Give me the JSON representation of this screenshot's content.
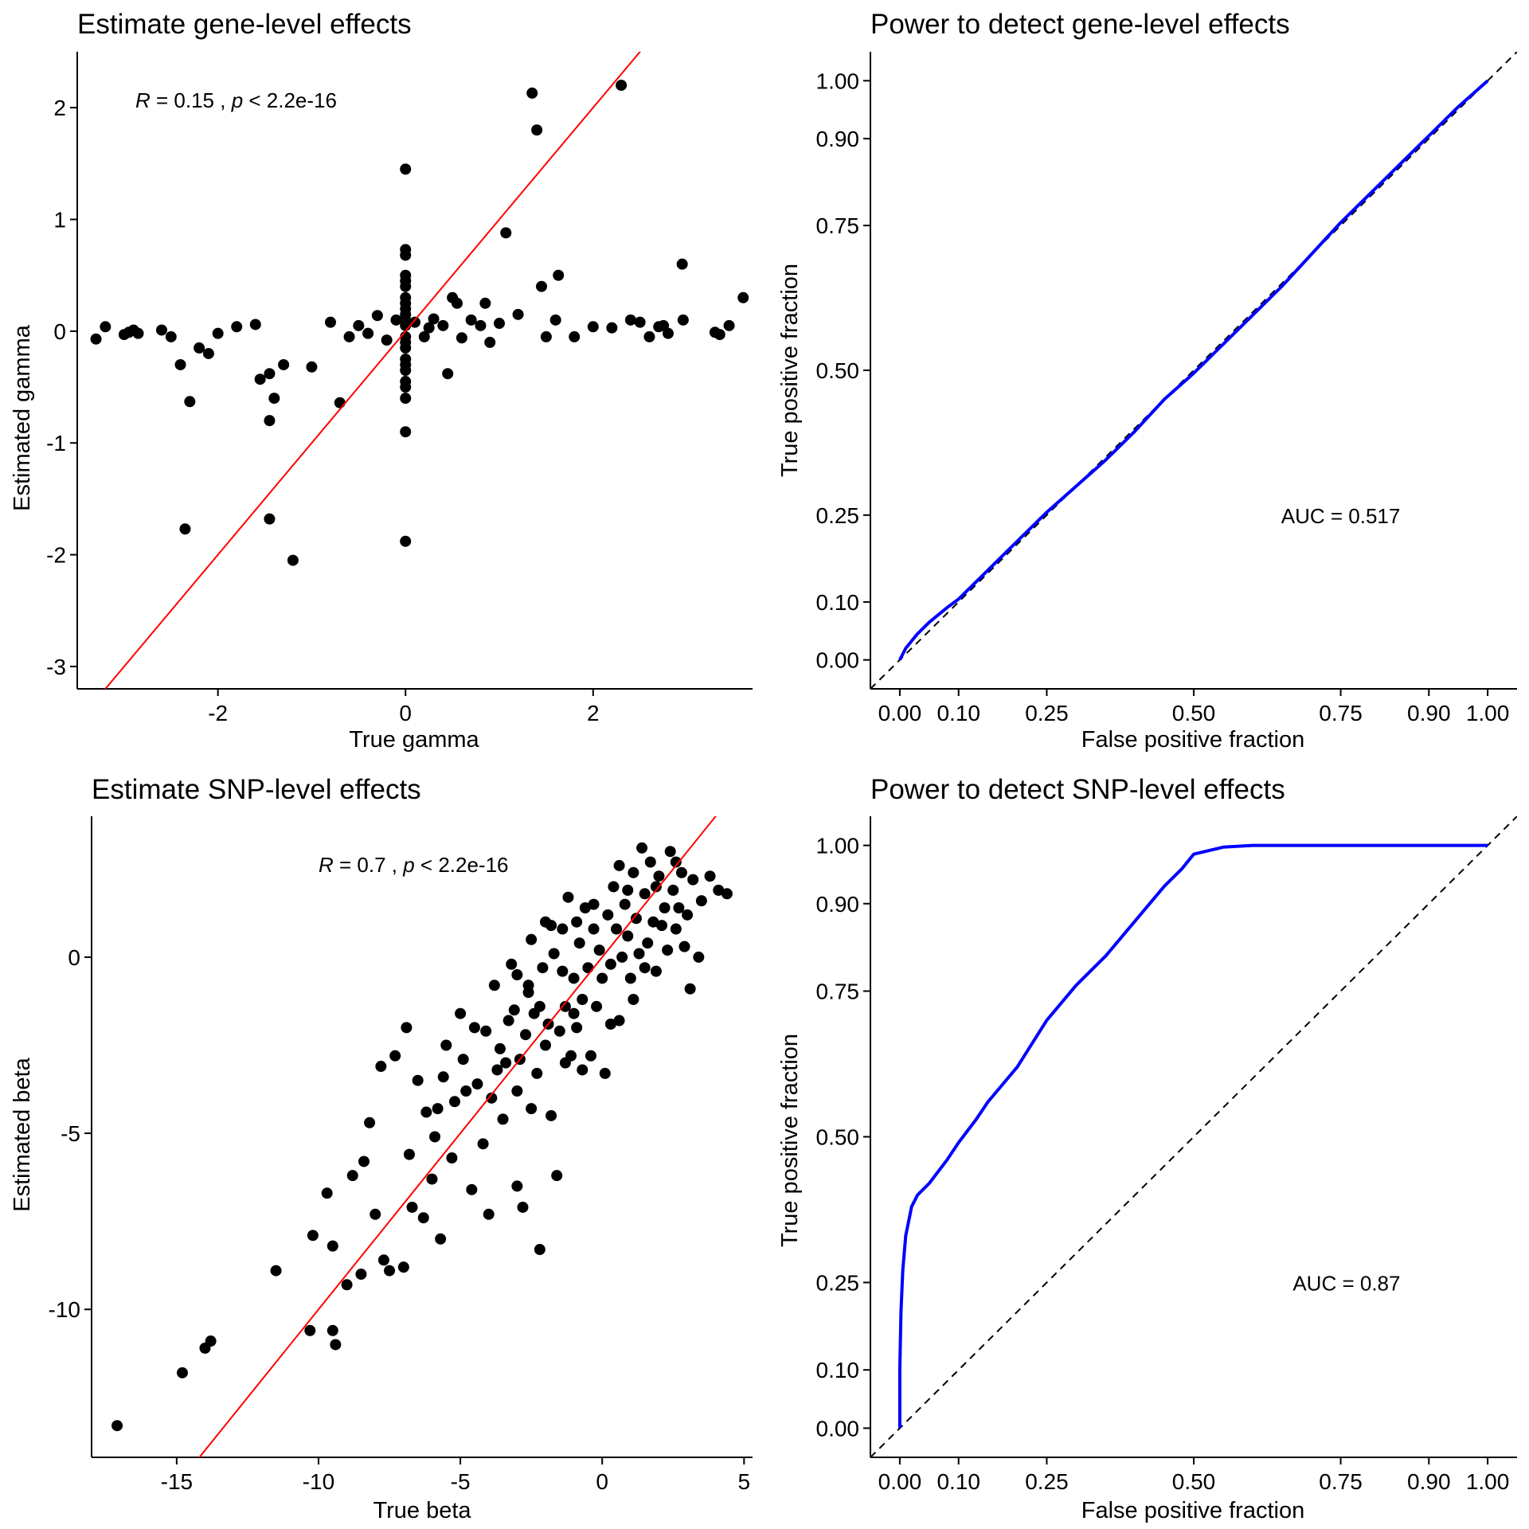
{
  "chart_data": [
    {
      "id": "gene-scatter",
      "type": "scatter",
      "title": "Estimate gene-level effects",
      "xlabel": "True gamma",
      "ylabel": "Estimated gamma",
      "xlim": [
        -3.5,
        3.7
      ],
      "ylim": [
        -3.2,
        2.5
      ],
      "xticks": [
        -2,
        0,
        2
      ],
      "yticks": [
        -3,
        -2,
        -1,
        0,
        1,
        2
      ],
      "tick_labels_x": [
        "-2",
        "0",
        "2"
      ],
      "tick_labels_y": [
        "-3",
        "-2",
        "-1",
        "0",
        "1",
        "2"
      ],
      "annotation_r": "R",
      "annotation_rest": " = 0.15 , ",
      "annotation_p": "p",
      "annotation_end": " < 2.2e-16",
      "fit_line": {
        "slope": 1.0,
        "intercept": 0.0,
        "color": "#ff0000"
      },
      "point_color": "#000000",
      "points": [
        [
          -3.3,
          -0.07
        ],
        [
          -3.2,
          0.04
        ],
        [
          -3.0,
          -0.03
        ],
        [
          -2.95,
          -0.01
        ],
        [
          -2.9,
          0.01
        ],
        [
          -2.85,
          -0.02
        ],
        [
          -2.6,
          0.01
        ],
        [
          -2.5,
          -0.05
        ],
        [
          -2.4,
          -0.3
        ],
        [
          -2.3,
          -0.63
        ],
        [
          -2.35,
          -1.77
        ],
        [
          -2.2,
          -0.15
        ],
        [
          -2.1,
          -0.2
        ],
        [
          -2.0,
          -0.02
        ],
        [
          -1.8,
          0.04
        ],
        [
          -1.6,
          0.06
        ],
        [
          -1.55,
          -0.43
        ],
        [
          -1.45,
          -0.38
        ],
        [
          -1.4,
          -0.6
        ],
        [
          -1.45,
          -0.8
        ],
        [
          -1.45,
          -1.68
        ],
        [
          -1.3,
          -0.3
        ],
        [
          -1.2,
          -2.05
        ],
        [
          -1.0,
          -0.32
        ],
        [
          -0.8,
          0.08
        ],
        [
          -0.7,
          -0.64
        ],
        [
          -0.6,
          -0.05
        ],
        [
          -0.5,
          0.05
        ],
        [
          -0.4,
          -0.02
        ],
        [
          -0.3,
          0.14
        ],
        [
          -0.2,
          -0.08
        ],
        [
          -0.1,
          0.1
        ],
        [
          0,
          1.45
        ],
        [
          0,
          0.73
        ],
        [
          0,
          0.68
        ],
        [
          0,
          0.5
        ],
        [
          0,
          0.45
        ],
        [
          0,
          0.4
        ],
        [
          0,
          0.3
        ],
        [
          0,
          0.25
        ],
        [
          0,
          0.2
        ],
        [
          0,
          0.15
        ],
        [
          0,
          0.1
        ],
        [
          0,
          0.05
        ],
        [
          0,
          -0.05
        ],
        [
          0,
          -0.1
        ],
        [
          0,
          -0.15
        ],
        [
          0,
          -0.25
        ],
        [
          0,
          -0.3
        ],
        [
          0,
          -0.35
        ],
        [
          0,
          -0.45
        ],
        [
          0,
          -0.5
        ],
        [
          0,
          -0.6
        ],
        [
          0,
          -0.9
        ],
        [
          0,
          -1.88
        ],
        [
          0.1,
          0.08
        ],
        [
          0.2,
          -0.05
        ],
        [
          0.25,
          0.03
        ],
        [
          0.3,
          0.11
        ],
        [
          0.4,
          0.05
        ],
        [
          0.45,
          -0.38
        ],
        [
          0.5,
          0.3
        ],
        [
          0.55,
          0.25
        ],
        [
          0.6,
          -0.06
        ],
        [
          0.7,
          0.1
        ],
        [
          0.8,
          0.05
        ],
        [
          0.85,
          0.25
        ],
        [
          0.9,
          -0.1
        ],
        [
          1.0,
          0.07
        ],
        [
          1.07,
          0.88
        ],
        [
          1.2,
          0.15
        ],
        [
          1.35,
          2.13
        ],
        [
          1.4,
          1.8
        ],
        [
          1.45,
          0.4
        ],
        [
          1.5,
          -0.05
        ],
        [
          1.6,
          0.1
        ],
        [
          1.63,
          0.5
        ],
        [
          1.8,
          -0.05
        ],
        [
          2.0,
          0.04
        ],
        [
          2.2,
          0.03
        ],
        [
          2.3,
          2.2
        ],
        [
          2.4,
          0.1
        ],
        [
          2.5,
          0.08
        ],
        [
          2.6,
          -0.05
        ],
        [
          2.7,
          0.04
        ],
        [
          2.75,
          0.05
        ],
        [
          2.8,
          -0.02
        ],
        [
          2.95,
          0.6
        ],
        [
          2.96,
          0.1
        ],
        [
          3.3,
          -0.01
        ],
        [
          3.35,
          -0.03
        ],
        [
          3.45,
          0.05
        ],
        [
          3.6,
          0.3
        ]
      ]
    },
    {
      "id": "gene-roc",
      "type": "line",
      "title": "Power to detect gene-level effects",
      "xlabel": "False positive fraction",
      "ylabel": "True positive fraction",
      "xlim": [
        -0.05,
        1.05
      ],
      "ylim": [
        -0.05,
        1.05
      ],
      "ticks": [
        0,
        0.1,
        0.25,
        0.5,
        0.75,
        0.9,
        1.0
      ],
      "tick_labels": [
        "0.00",
        "0.10",
        "0.25",
        "0.50",
        "0.75",
        "0.90",
        "1.00"
      ],
      "annotation": "AUC = 0.517",
      "annotation_pos": [
        0.75,
        0.25
      ],
      "line_color": "#0000ff",
      "x": [
        0,
        0.01,
        0.03,
        0.05,
        0.08,
        0.1,
        0.15,
        0.2,
        0.25,
        0.3,
        0.35,
        0.4,
        0.45,
        0.5,
        0.55,
        0.6,
        0.65,
        0.7,
        0.75,
        0.8,
        0.85,
        0.9,
        0.95,
        1.0
      ],
      "y": [
        0,
        0.02,
        0.045,
        0.065,
        0.09,
        0.105,
        0.155,
        0.205,
        0.255,
        0.3,
        0.345,
        0.395,
        0.45,
        0.495,
        0.545,
        0.595,
        0.645,
        0.7,
        0.755,
        0.805,
        0.855,
        0.905,
        0.955,
        1.0
      ]
    },
    {
      "id": "snp-scatter",
      "type": "scatter",
      "title": "Estimate SNP-level effects",
      "xlabel": "True beta",
      "ylabel": "Estimated beta",
      "xlim": [
        -18,
        5.3
      ],
      "ylim": [
        -14.2,
        4.0
      ],
      "xticks": [
        -15,
        -10,
        -5,
        0,
        5
      ],
      "yticks": [
        -10,
        -5,
        0
      ],
      "tick_labels_x": [
        "-15",
        "-10",
        "-5",
        "0",
        "5"
      ],
      "tick_labels_y": [
        "-10",
        "-5",
        "0"
      ],
      "annotation_r": "R",
      "annotation_rest": " = 0.7 , ",
      "annotation_p": "p",
      "annotation_end": " < 2.2e-16",
      "fit_line": {
        "slope": 1.0,
        "intercept": 0.0,
        "color": "#ff0000"
      },
      "point_color": "#000000",
      "points": [
        [
          -17.1,
          -13.3
        ],
        [
          -14.8,
          -11.8
        ],
        [
          -14.0,
          -11.1
        ],
        [
          -13.8,
          -10.9
        ],
        [
          -11.5,
          -8.9
        ],
        [
          -10.3,
          -10.6
        ],
        [
          -10.2,
          -7.9
        ],
        [
          -9.5,
          -10.6
        ],
        [
          -9.4,
          -11.0
        ],
        [
          -9.5,
          -8.2
        ],
        [
          -9.0,
          -9.3
        ],
        [
          -8.5,
          -9.0
        ],
        [
          -9.7,
          -6.7
        ],
        [
          -8.8,
          -6.2
        ],
        [
          -8.4,
          -5.8
        ],
        [
          -8.0,
          -7.3
        ],
        [
          -8.2,
          -4.7
        ],
        [
          -7.7,
          -8.6
        ],
        [
          -7.5,
          -8.9
        ],
        [
          -7.0,
          -8.8
        ],
        [
          -7.8,
          -3.1
        ],
        [
          -7.3,
          -2.8
        ],
        [
          -6.9,
          -2.0
        ],
        [
          -6.7,
          -7.1
        ],
        [
          -6.5,
          -3.5
        ],
        [
          -6.3,
          -7.4
        ],
        [
          -6.0,
          -6.3
        ],
        [
          -5.8,
          -4.3
        ],
        [
          -5.7,
          -8.0
        ],
        [
          -5.5,
          -2.5
        ],
        [
          -5.3,
          -5.7
        ],
        [
          -5.0,
          -1.6
        ],
        [
          -4.8,
          -3.8
        ],
        [
          -4.6,
          -6.6
        ],
        [
          -4.5,
          -2.0
        ],
        [
          -4.2,
          -5.3
        ],
        [
          -4.0,
          -7.3
        ],
        [
          -3.8,
          -0.8
        ],
        [
          -3.7,
          -3.2
        ],
        [
          -3.5,
          -4.6
        ],
        [
          -3.3,
          -1.8
        ],
        [
          -3.2,
          -0.2
        ],
        [
          -3.0,
          -6.5
        ],
        [
          -3.0,
          -3.8
        ],
        [
          -2.8,
          -7.1
        ],
        [
          -2.7,
          -2.2
        ],
        [
          -2.6,
          -0.8
        ],
        [
          -2.5,
          0.5
        ],
        [
          -2.5,
          -4.3
        ],
        [
          -2.3,
          -3.3
        ],
        [
          -2.2,
          -8.3
        ],
        [
          -2.2,
          -1.4
        ],
        [
          -2.0,
          -2.5
        ],
        [
          -1.8,
          0.9
        ],
        [
          -1.8,
          -4.5
        ],
        [
          -1.6,
          -6.2
        ],
        [
          -1.5,
          -2.1
        ],
        [
          -1.4,
          -0.4
        ],
        [
          -1.3,
          -1.4
        ],
        [
          -1.2,
          1.7
        ],
        [
          -1.1,
          -2.8
        ],
        [
          -1.0,
          -0.6
        ],
        [
          -0.9,
          -2.0
        ],
        [
          -0.8,
          0.4
        ],
        [
          -0.7,
          -1.2
        ],
        [
          -0.6,
          1.4
        ],
        [
          -0.5,
          -0.3
        ],
        [
          -0.4,
          -2.8
        ],
        [
          -0.3,
          0.8
        ],
        [
          -0.2,
          -1.4
        ],
        [
          -0.1,
          0.2
        ],
        [
          0,
          -0.6
        ],
        [
          0.1,
          -3.3
        ],
        [
          0.2,
          1.2
        ],
        [
          0.3,
          -0.2
        ],
        [
          0.4,
          2.0
        ],
        [
          0.5,
          0.8
        ],
        [
          0.6,
          -1.8
        ],
        [
          0.7,
          0.0
        ],
        [
          0.8,
          1.5
        ],
        [
          0.9,
          0.6
        ],
        [
          1.0,
          -0.6
        ],
        [
          1.1,
          2.4
        ],
        [
          1.2,
          1.1
        ],
        [
          1.3,
          0.1
        ],
        [
          1.4,
          3.1
        ],
        [
          1.5,
          1.8
        ],
        [
          1.6,
          0.4
        ],
        [
          1.7,
          2.7
        ],
        [
          1.8,
          1.0
        ],
        [
          1.9,
          -0.4
        ],
        [
          2.0,
          2.3
        ],
        [
          2.2,
          1.4
        ],
        [
          2.3,
          0.2
        ],
        [
          2.4,
          3.0
        ],
        [
          2.5,
          1.9
        ],
        [
          2.6,
          0.8
        ],
        [
          2.8,
          2.4
        ],
        [
          3.0,
          1.2
        ],
        [
          3.1,
          -0.9
        ],
        [
          3.2,
          2.2
        ],
        [
          3.4,
          0.0
        ],
        [
          3.5,
          1.6
        ],
        [
          3.8,
          2.3
        ],
        [
          4.1,
          1.9
        ],
        [
          4.4,
          1.8
        ],
        [
          -6.8,
          -5.6
        ],
        [
          -6.2,
          -4.4
        ],
        [
          -5.9,
          -5.1
        ],
        [
          -5.6,
          -3.4
        ],
        [
          -5.2,
          -4.1
        ],
        [
          -4.9,
          -2.9
        ],
        [
          -4.4,
          -3.6
        ],
        [
          -4.1,
          -2.1
        ],
        [
          -3.9,
          -4.0
        ],
        [
          -3.6,
          -2.6
        ],
        [
          -3.4,
          -3.0
        ],
        [
          -3.1,
          -1.5
        ],
        [
          -2.9,
          -2.9
        ],
        [
          -2.4,
          -1.6
        ],
        [
          -2.1,
          -0.3
        ],
        [
          -1.9,
          -1.9
        ],
        [
          -1.7,
          0.1
        ],
        [
          -1.3,
          -3.0
        ],
        [
          -0.9,
          1.0
        ],
        [
          -0.7,
          -3.2
        ],
        [
          0.3,
          -1.9
        ],
        [
          0.6,
          2.6
        ],
        [
          1.1,
          -1.2
        ],
        [
          1.5,
          -0.3
        ],
        [
          2.1,
          0.9
        ],
        [
          2.7,
          1.4
        ],
        [
          2.9,
          0.3
        ],
        [
          -2.6,
          -1.0
        ],
        [
          -1.4,
          0.8
        ],
        [
          -0.3,
          1.5
        ],
        [
          0.9,
          1.9
        ],
        [
          1.9,
          2.0
        ],
        [
          2.6,
          2.7
        ],
        [
          -1.0,
          -1.6
        ],
        [
          -2.0,
          1.0
        ],
        [
          -3.0,
          -0.5
        ]
      ]
    },
    {
      "id": "snp-roc",
      "type": "line",
      "title": "Power to detect SNP-level effects",
      "xlabel": "False positive fraction",
      "ylabel": "True positive fraction",
      "xlim": [
        -0.05,
        1.05
      ],
      "ylim": [
        -0.05,
        1.05
      ],
      "ticks": [
        0,
        0.1,
        0.25,
        0.5,
        0.75,
        0.9,
        1.0
      ],
      "tick_labels": [
        "0.00",
        "0.10",
        "0.25",
        "0.50",
        "0.75",
        "0.90",
        "1.00"
      ],
      "annotation": "AUC = 0.87",
      "annotation_pos": [
        0.76,
        0.25
      ],
      "line_color": "#0000ff",
      "x": [
        0,
        0.0,
        0.002,
        0.005,
        0.01,
        0.02,
        0.03,
        0.05,
        0.08,
        0.1,
        0.13,
        0.15,
        0.2,
        0.25,
        0.3,
        0.35,
        0.4,
        0.45,
        0.48,
        0.5,
        0.55,
        0.6,
        0.7,
        0.8,
        0.9,
        1.0
      ],
      "y": [
        0,
        0.1,
        0.2,
        0.27,
        0.33,
        0.38,
        0.4,
        0.42,
        0.46,
        0.49,
        0.53,
        0.56,
        0.62,
        0.7,
        0.76,
        0.81,
        0.87,
        0.93,
        0.96,
        0.985,
        0.997,
        1.0,
        1.0,
        1.0,
        1.0,
        1.0
      ]
    }
  ]
}
